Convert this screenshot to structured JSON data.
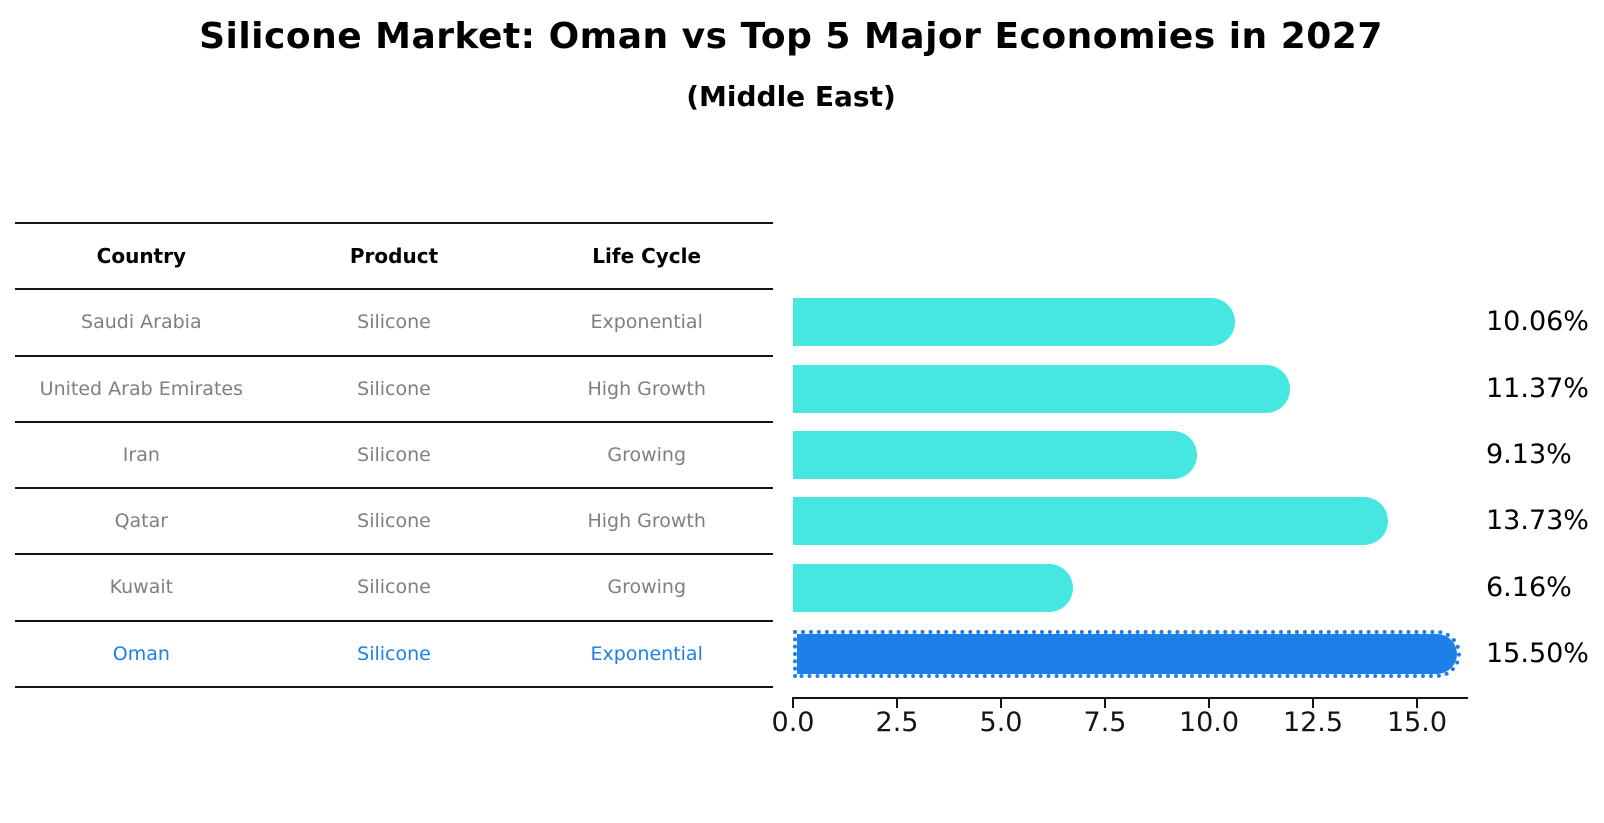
{
  "title": "Silicone Market: Oman vs Top 5 Major Economies in 2027",
  "subtitle": "(Middle East)",
  "table": {
    "headers": [
      "Country",
      "Product",
      "Life Cycle"
    ],
    "rows": [
      {
        "country": "Saudi Arabia",
        "product": "Silicone",
        "life_cycle": "Exponential",
        "highlight": false
      },
      {
        "country": "United Arab Emirates",
        "product": "Silicone",
        "life_cycle": "High Growth",
        "highlight": false
      },
      {
        "country": "Iran",
        "product": "Silicone",
        "life_cycle": "Growing",
        "highlight": false
      },
      {
        "country": "Qatar",
        "product": "Silicone",
        "life_cycle": "High Growth",
        "highlight": false
      },
      {
        "country": "Kuwait",
        "product": "Silicone",
        "life_cycle": "Growing",
        "highlight": false
      },
      {
        "country": "Oman",
        "product": "Silicone",
        "life_cycle": "Exponential",
        "highlight": true
      }
    ]
  },
  "chart_data": {
    "type": "bar",
    "orientation": "horizontal",
    "title": "Silicone Market: Oman vs Top 5 Major Economies in 2027",
    "subtitle": "(Middle East)",
    "categories": [
      "Saudi Arabia",
      "United Arab Emirates",
      "Iran",
      "Qatar",
      "Kuwait",
      "Oman"
    ],
    "values": [
      10.06,
      11.37,
      9.13,
      13.73,
      6.16,
      15.5
    ],
    "value_labels": [
      "10.06%",
      "11.37%",
      "9.13%",
      "13.73%",
      "6.16%",
      "15.50%"
    ],
    "highlight_index": 5,
    "xlabel": "",
    "ylabel": "",
    "xlim": [
      0,
      16.25
    ],
    "xticks": [
      0.0,
      2.5,
      5.0,
      7.5,
      10.0,
      12.5,
      15.0
    ],
    "xtick_labels": [
      "0.0",
      "2.5",
      "5.0",
      "7.5",
      "10.0",
      "12.5",
      "15.0"
    ],
    "grid": false,
    "legend": false
  },
  "colors": {
    "bar": "#46E6E1",
    "highlight": "#1F7FE8",
    "axis": "#141414",
    "table_text": "#7F7F7F",
    "background": "#FFFFFF"
  }
}
